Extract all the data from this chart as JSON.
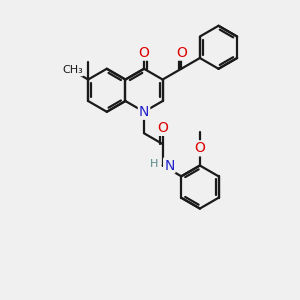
{
  "bg_color": "#f0f0f0",
  "bond_color": "#1a1a1a",
  "N_color": "#2222cc",
  "O_color": "#dd0000",
  "H_color": "#5a8a8a",
  "line_width": 1.6,
  "font_size_atom": 8.5,
  "figsize": [
    3.0,
    3.0
  ],
  "dpi": 100,
  "xlim": [
    0,
    10
  ],
  "ylim": [
    0,
    10
  ]
}
